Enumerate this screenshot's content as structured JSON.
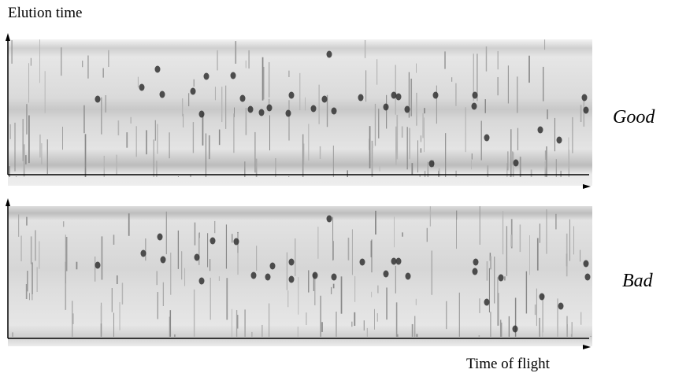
{
  "axes": {
    "y_label": "Elution time",
    "x_label": "Time of flight"
  },
  "panels": [
    {
      "label": "Good"
    },
    {
      "label": "Bad"
    }
  ]
}
